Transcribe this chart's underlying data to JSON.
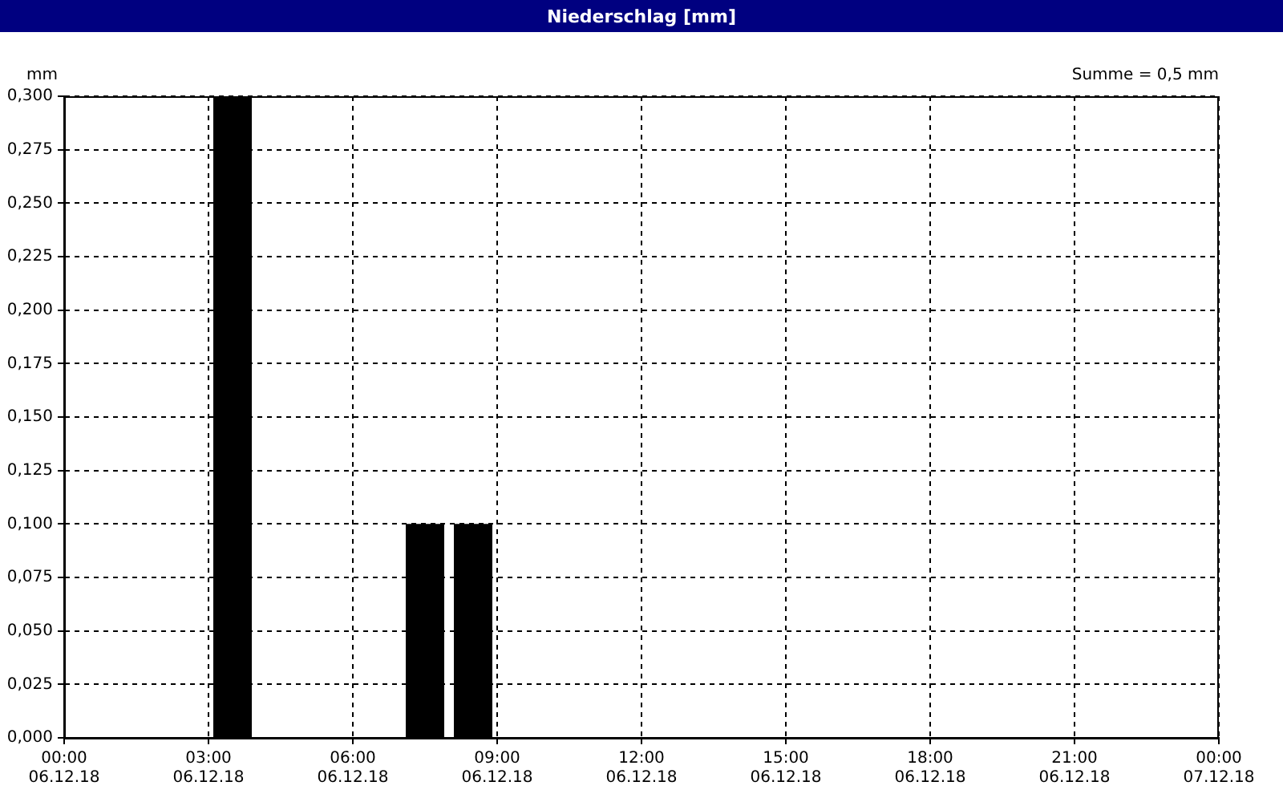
{
  "chart_data": {
    "type": "bar",
    "title": "Niederschlag [mm]",
    "ylabel": "mm",
    "annotations": [
      "Summe = 0,5 mm"
    ],
    "x": [
      "--12-06T03:30",
      "--12-06T07:30",
      "--12-06T08:30"
    ],
    "values": [
      0.3,
      0.1,
      0.1
    ],
    "color": "#000000",
    "xlim": [
      "--12-06T00:00",
      "--12-07T00:00"
    ],
    "xticks": [
      {
        "value": "--12-06T00:00",
        "label": "00:00\n06.12.18"
      },
      {
        "value": "--12-06T03:00",
        "label": "03:00\n06.12.18"
      },
      {
        "value": "--12-06T06:00",
        "label": "06:00\n06.12.18"
      },
      {
        "value": "--12-06T09:00",
        "label": "09:00\n06.12.18"
      },
      {
        "value": "--12-06T12:00",
        "label": "12:00\n06.12.18"
      },
      {
        "value": "--12-06T15:00",
        "label": "15:00\n06.12.18"
      },
      {
        "value": "--12-06T18:00",
        "label": "18:00\n06.12.18"
      },
      {
        "value": "--12-06T21:00",
        "label": "21:00\n06.12.18"
      },
      {
        "value": "--12-07T00:00",
        "label": "00:00\n07.12.18"
      }
    ],
    "ylim": [
      0,
      0.3
    ],
    "yticks": [
      {
        "value": 0,
        "label": "0,000"
      },
      {
        "value": 0.025,
        "label": "0,025"
      },
      {
        "value": 0.05,
        "label": "0,050"
      },
      {
        "value": 0.075,
        "label": "0,075"
      },
      {
        "value": 0.1,
        "label": "0,100"
      },
      {
        "value": 0.125,
        "label": "0,125"
      },
      {
        "value": 0.15,
        "label": "0,150"
      },
      {
        "value": 0.175,
        "label": "0,175"
      },
      {
        "value": 0.2,
        "label": "0,200"
      },
      {
        "value": 0.225,
        "label": "0,225"
      },
      {
        "value": 0.25,
        "label": "0,250"
      },
      {
        "value": 0.275,
        "label": "0,275"
      },
      {
        "value": 0.3,
        "label": "0,300"
      }
    ],
    "grid": true
  }
}
